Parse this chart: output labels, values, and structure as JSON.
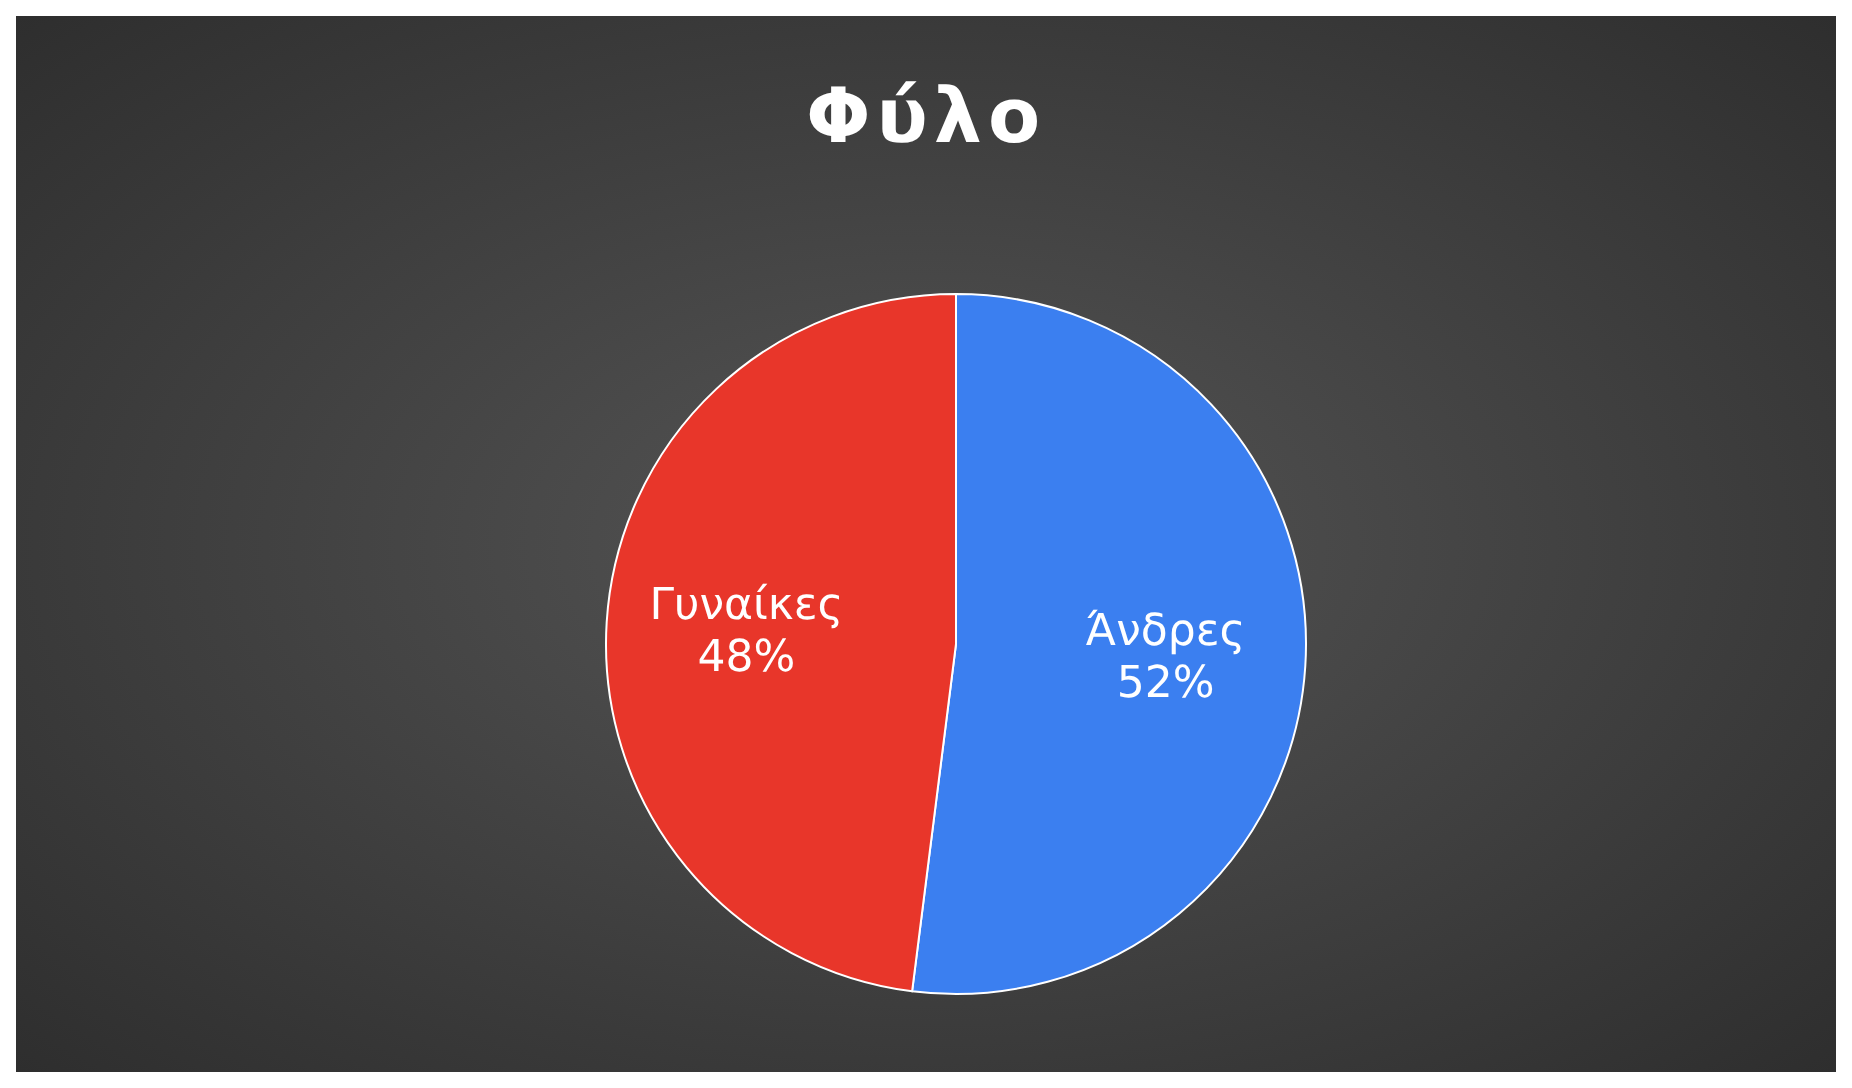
{
  "chart_data": {
    "type": "pie",
    "title": "Φύλο",
    "categories": [
      "Άνδρες",
      "Γυναίκες"
    ],
    "values": [
      52,
      48
    ],
    "colors": [
      "#3b7ff0",
      "#e8362a"
    ],
    "value_labels": [
      "52%",
      "48%"
    ],
    "legend": false
  }
}
